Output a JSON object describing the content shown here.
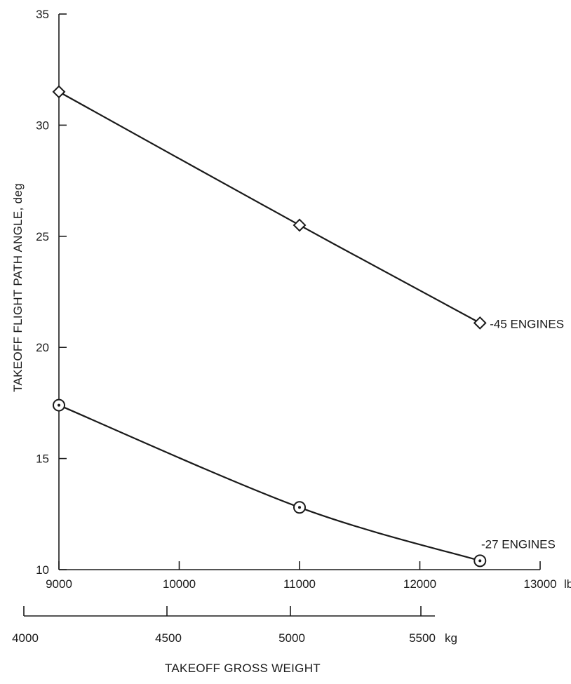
{
  "chart_data": {
    "type": "line",
    "title": "",
    "ylabel": "TAKEOFF FLIGHT PATH ANGLE, deg",
    "xlabel": "TAKEOFF GROSS WEIGHT",
    "xlim": [
      9000,
      13000
    ],
    "ylim": [
      10,
      35
    ],
    "x_ticks": [
      9000,
      10000,
      11000,
      12000,
      13000
    ],
    "x_tick_labels": [
      "9000",
      "10000",
      "11000",
      "12000",
      "13000"
    ],
    "x_unit": "lb",
    "y_ticks": [
      10,
      15,
      20,
      25,
      30,
      35
    ],
    "y_tick_labels": [
      "10",
      "15",
      "20",
      "25",
      "30",
      "35"
    ],
    "secondary_x_axis": {
      "unit": "kg",
      "ticks": [
        4000,
        4500,
        5000,
        5500
      ],
      "tick_labels": [
        "4000",
        "4500",
        "5000",
        "5500"
      ]
    },
    "grid": false,
    "series": [
      {
        "name": "-45 ENGINES",
        "marker": "diamond",
        "x": [
          9000,
          11000,
          12500
        ],
        "y": [
          31.5,
          25.5,
          21.1
        ]
      },
      {
        "name": "-27 ENGINES",
        "marker": "circle",
        "x": [
          9000,
          11000,
          12500
        ],
        "y": [
          17.4,
          12.8,
          10.4
        ]
      }
    ]
  }
}
